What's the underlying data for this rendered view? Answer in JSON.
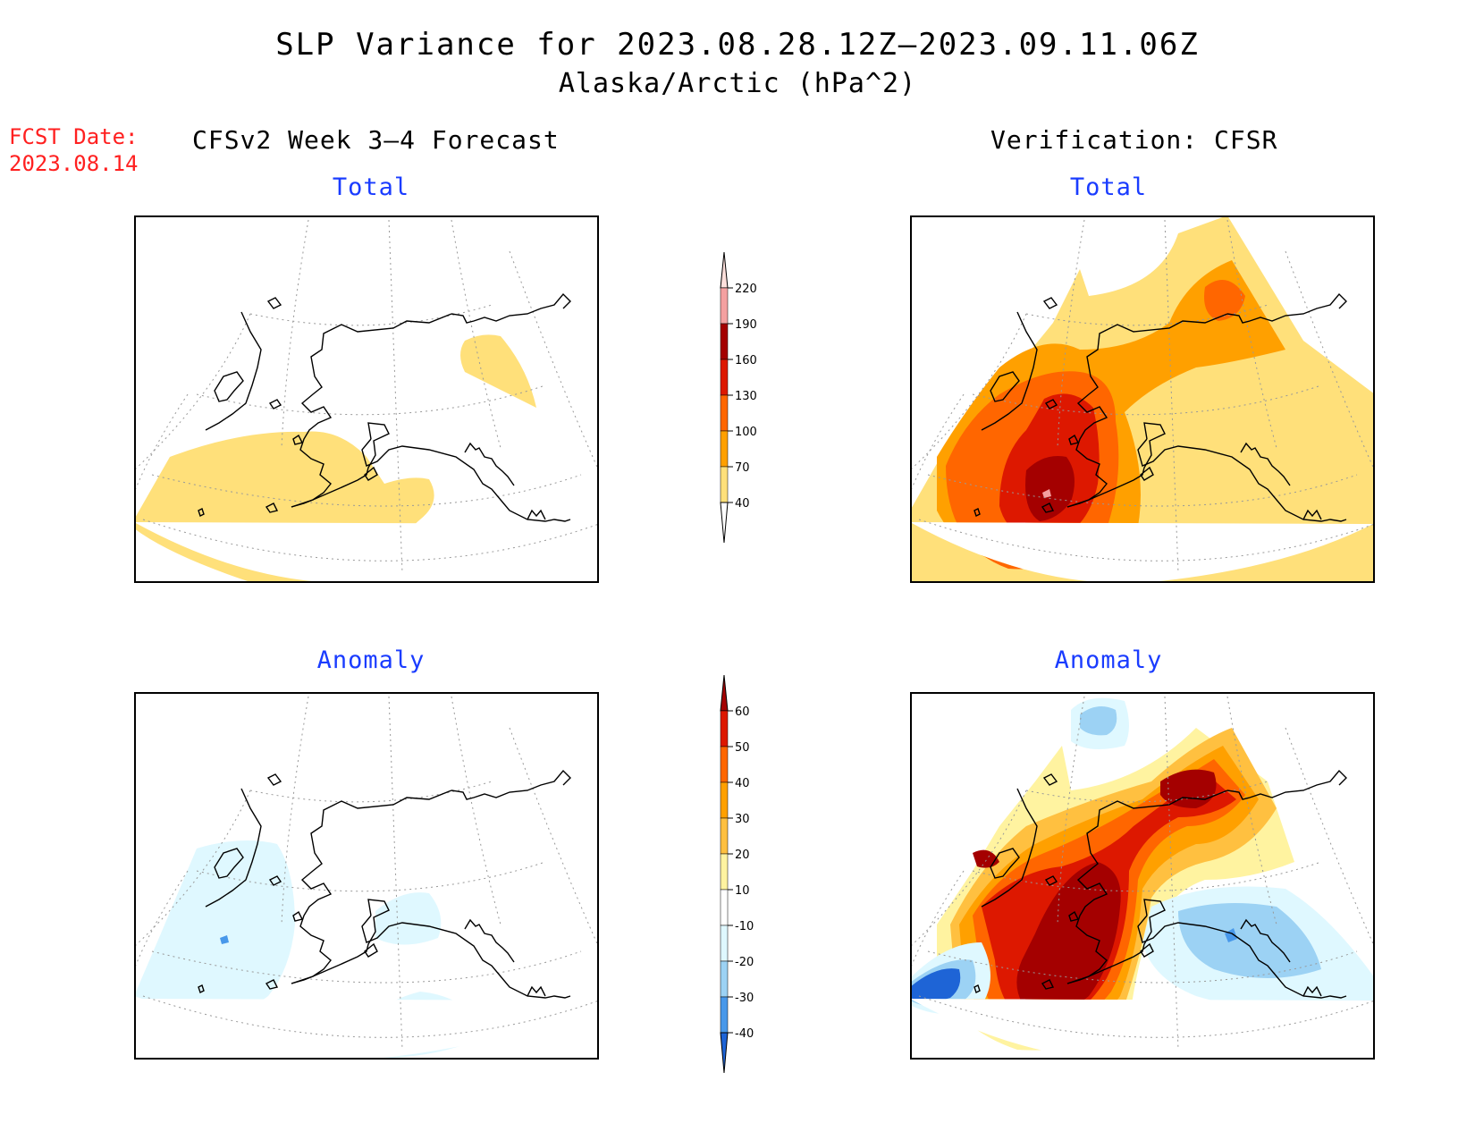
{
  "title": "SLP Variance for 2023.08.28.12Z—2023.09.11.06Z",
  "subtitle": "Alaska/Arctic (hPa^2)",
  "fcst_date_label": "FCST Date:",
  "fcst_date_value": "2023.08.14",
  "forecast_header": "CFSv2 Week 3—4 Forecast",
  "verification_header": "Verification: CFSR",
  "panels": {
    "top_left": "Total",
    "top_right": "Total",
    "bottom_left": "Anomaly",
    "bottom_right": "Anomaly"
  },
  "colorbar_total": {
    "labels": [
      "220",
      "190",
      "160",
      "130",
      "100",
      "70",
      "40"
    ],
    "colors": [
      "#fde0dc",
      "#f4a0a0",
      "#a40000",
      "#dd1800",
      "#ff6600",
      "#ffa000",
      "#ffe07a"
    ]
  },
  "colorbar_anomaly": {
    "labels": [
      "60",
      "50",
      "40",
      "30",
      "20",
      "10",
      "-10",
      "-20",
      "-30",
      "-40"
    ],
    "colors": [
      "#a40000",
      "#dd1800",
      "#ff6600",
      "#ffa000",
      "#ffc040",
      "#fff3a0",
      "#ffffff",
      "#dff8ff",
      "#9cd2f4",
      "#4898ea",
      "#1e64d6"
    ]
  },
  "colors": {
    "fcst_date": "#ff2020",
    "panel_title": "#1a3cff",
    "land_outline": "#000000",
    "graticule": "#999999"
  }
}
